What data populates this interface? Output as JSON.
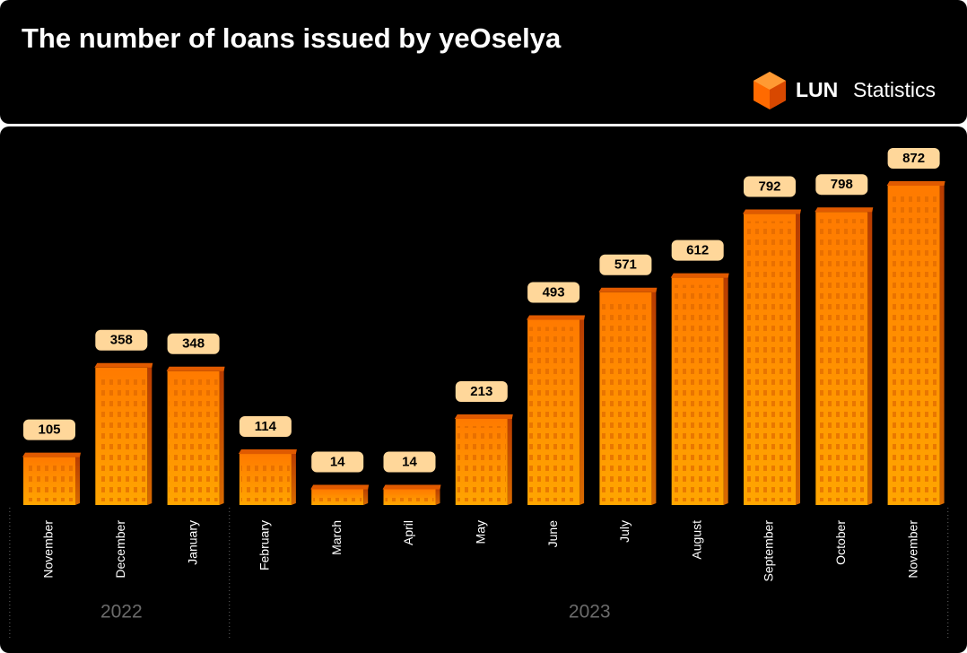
{
  "chart_data": {
    "type": "bar",
    "title": "The number of loans issued by yeOselya",
    "logo_bold": "LUN",
    "logo_text": "Statistics",
    "categories": [
      "November",
      "December",
      "January",
      "February",
      "March",
      "April",
      "May",
      "June",
      "July",
      "August",
      "September",
      "October",
      "November"
    ],
    "years": [
      "2022",
      "2022",
      "2022",
      "2023",
      "2023",
      "2023",
      "2023",
      "2023",
      "2023",
      "2023",
      "2023",
      "2023",
      "2023"
    ],
    "values": [
      105,
      358,
      348,
      114,
      14,
      14,
      213,
      493,
      571,
      612,
      792,
      798,
      872
    ],
    "color": "#ff9a00"
  }
}
